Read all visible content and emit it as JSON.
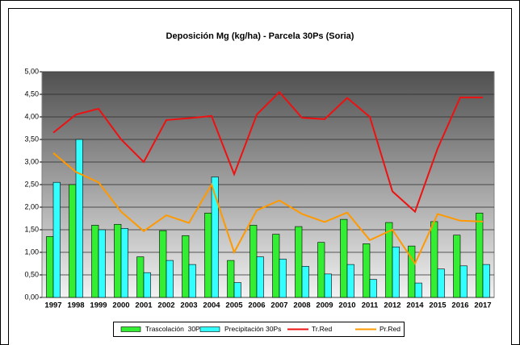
{
  "chart_data": {
    "type": "bar",
    "title": "Deposición Mg (kg/ha) - Parcela 30Ps (Soria)",
    "categories": [
      "1997",
      "1998",
      "1999",
      "2000",
      "2001",
      "2002",
      "2003",
      "2004",
      "2005",
      "2006",
      "2007",
      "2008",
      "2009",
      "2010",
      "2011",
      "2012",
      "2014",
      "2015",
      "2016",
      "2017"
    ],
    "series": [
      {
        "name": "Trascolación  30Ps",
        "type": "bar",
        "color": "#33ee33",
        "values": [
          1.35,
          2.5,
          1.6,
          1.62,
          0.9,
          1.48,
          1.37,
          1.87,
          0.82,
          1.6,
          1.4,
          1.57,
          1.22,
          1.73,
          1.19,
          1.66,
          1.14,
          1.68,
          1.38,
          1.87
        ]
      },
      {
        "name": "Precipitación 30Ps",
        "type": "bar",
        "color": "#33ffff",
        "values": [
          2.55,
          3.5,
          1.5,
          1.53,
          0.55,
          0.82,
          0.73,
          2.67,
          0.33,
          0.9,
          0.85,
          0.69,
          0.52,
          0.73,
          0.4,
          1.12,
          0.32,
          0.63,
          0.7,
          0.73
        ]
      },
      {
        "name": "Tr.Red",
        "type": "line",
        "color": "#ee1111",
        "values": [
          3.65,
          4.05,
          4.18,
          3.5,
          3.0,
          3.93,
          3.97,
          4.02,
          2.73,
          4.05,
          4.55,
          3.98,
          3.95,
          4.42,
          4.0,
          2.35,
          1.9,
          3.3,
          4.43,
          4.43
        ]
      },
      {
        "name": "Pr.Red",
        "type": "line",
        "color": "#ff9900",
        "values": [
          3.2,
          2.78,
          2.55,
          1.9,
          1.47,
          1.82,
          1.65,
          2.5,
          1.0,
          1.93,
          2.15,
          1.85,
          1.67,
          1.88,
          1.27,
          1.5,
          0.75,
          1.85,
          1.7,
          1.68
        ]
      }
    ],
    "ylim": [
      0,
      5
    ],
    "yticks": [
      {
        "value": 0,
        "label": "0,00"
      },
      {
        "value": 0.5,
        "label": "0,50"
      },
      {
        "value": 1,
        "label": "1,00"
      },
      {
        "value": 1.5,
        "label": "1,50"
      },
      {
        "value": 2,
        "label": "2,00"
      },
      {
        "value": 2.5,
        "label": "2,50"
      },
      {
        "value": 3,
        "label": "3,00"
      },
      {
        "value": 3.5,
        "label": "3,50"
      },
      {
        "value": 4,
        "label": "4,00"
      },
      {
        "value": 4.5,
        "label": "4,50"
      },
      {
        "value": 5,
        "label": "5,00"
      }
    ],
    "grid": true,
    "legend": "bottom"
  }
}
